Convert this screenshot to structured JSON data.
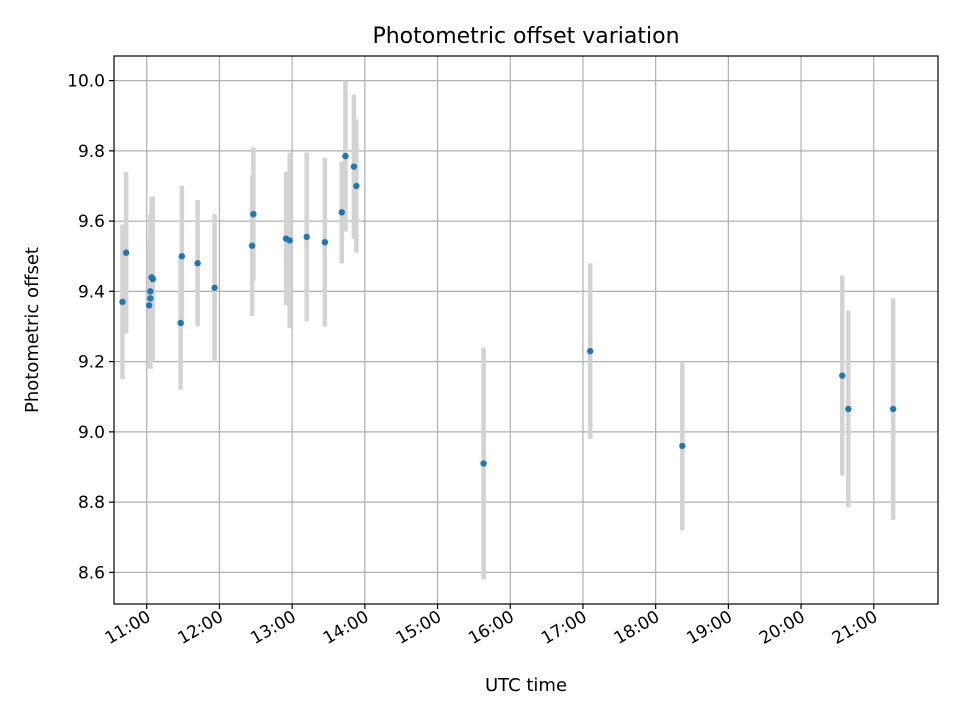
{
  "chart_data": {
    "type": "scatter",
    "title": "Photometric offset variation",
    "xlabel": "UTC time",
    "ylabel": "Photometric offset",
    "xlim": [
      "10:33",
      "21:53"
    ],
    "ylim": [
      8.51,
      10.07
    ],
    "grid": true,
    "x_ticks": [
      "11:00",
      "12:00",
      "13:00",
      "14:00",
      "15:00",
      "16:00",
      "17:00",
      "18:00",
      "19:00",
      "20:00",
      "21:00"
    ],
    "y_ticks": [
      "8.6",
      "8.8",
      "9.0",
      "9.2",
      "9.4",
      "9.6",
      "9.8",
      "10.0"
    ],
    "marker_color": "#1f77b4",
    "errorbar_color": "#d3d3d3",
    "points": [
      {
        "x": "10:40",
        "y": 9.37,
        "yerr": 0.22
      },
      {
        "x": "10:43",
        "y": 9.51,
        "yerr": 0.23
      },
      {
        "x": "11:02",
        "y": 9.36,
        "yerr": 0.18
      },
      {
        "x": "11:03",
        "y": 9.38,
        "yerr": 0.2
      },
      {
        "x": "11:03",
        "y": 9.4,
        "yerr": 0.22
      },
      {
        "x": "11:04",
        "y": 9.44,
        "yerr": 0.23
      },
      {
        "x": "11:05",
        "y": 9.435,
        "yerr": 0.235
      },
      {
        "x": "11:28",
        "y": 9.31,
        "yerr": 0.19
      },
      {
        "x": "11:29",
        "y": 9.5,
        "yerr": 0.2
      },
      {
        "x": "11:42",
        "y": 9.48,
        "yerr": 0.18
      },
      {
        "x": "11:56",
        "y": 9.41,
        "yerr": 0.21
      },
      {
        "x": "12:27",
        "y": 9.53,
        "yerr": 0.2
      },
      {
        "x": "12:28",
        "y": 9.62,
        "yerr": 0.19
      },
      {
        "x": "12:55",
        "y": 9.55,
        "yerr": 0.19
      },
      {
        "x": "12:58",
        "y": 9.545,
        "yerr": 0.25
      },
      {
        "x": "13:12",
        "y": 9.555,
        "yerr": 0.24
      },
      {
        "x": "13:27",
        "y": 9.54,
        "yerr": 0.24
      },
      {
        "x": "13:41",
        "y": 9.625,
        "yerr": 0.145
      },
      {
        "x": "13:44",
        "y": 9.785,
        "yerr": 0.215
      },
      {
        "x": "13:51",
        "y": 9.755,
        "yerr": 0.205
      },
      {
        "x": "13:53",
        "y": 9.7,
        "yerr": 0.19
      },
      {
        "x": "15:38",
        "y": 8.91,
        "yerr": 0.33
      },
      {
        "x": "17:06",
        "y": 9.23,
        "yerr": 0.25
      },
      {
        "x": "18:22",
        "y": 8.96,
        "yerr": 0.24
      },
      {
        "x": "20:34",
        "y": 9.16,
        "yerr": 0.285
      },
      {
        "x": "20:39",
        "y": 9.065,
        "yerr": 0.28
      },
      {
        "x": "21:16",
        "y": 9.065,
        "yerr": 0.315
      }
    ]
  }
}
